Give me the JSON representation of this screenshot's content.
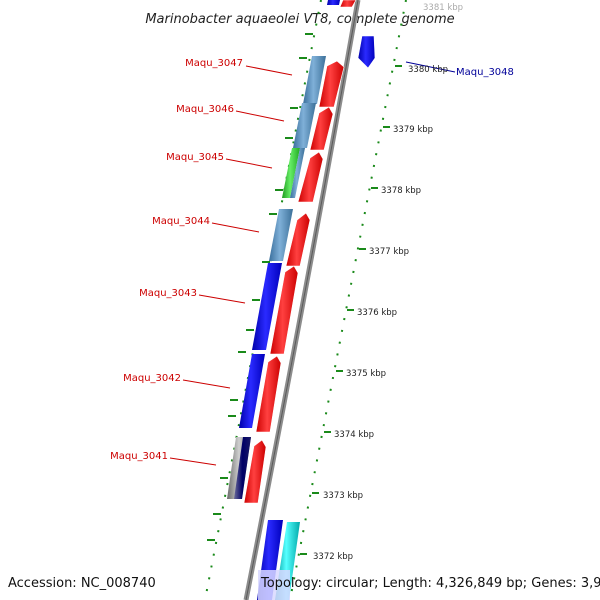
{
  "title": "Marinobacter aquaeolei VT8, complete genome",
  "footer": {
    "accession": "Accession: NC_008740",
    "topology": "Topology: circular; Length: 4,326,849 bp; Genes: 3,921"
  },
  "scale_labels": [
    "3381 kbp",
    "3380 kbp",
    "3379 kbp",
    "3378 kbp",
    "3377 kbp",
    "3376 kbp",
    "3375 kbp",
    "3374 kbp",
    "3373 kbp",
    "3372 kbp"
  ],
  "gene_labels": [
    "Maqu_3047",
    "Maqu_3046",
    "Maqu_3045",
    "Maqu_3044",
    "Maqu_3043",
    "Maqu_3042",
    "Maqu_3041",
    "Maqu_3048"
  ],
  "colors": {
    "label_red": "#cc0000",
    "label_blue": "#000099",
    "tick_green": "#1a8a1a",
    "backbone": "#8c8c8c",
    "reverse_arrow": "#ff0000",
    "cds_blue": "#0000ee",
    "cds_steel": "#4682b4",
    "cds_green": "#33cc33",
    "cds_cyan": "#00cccc"
  }
}
